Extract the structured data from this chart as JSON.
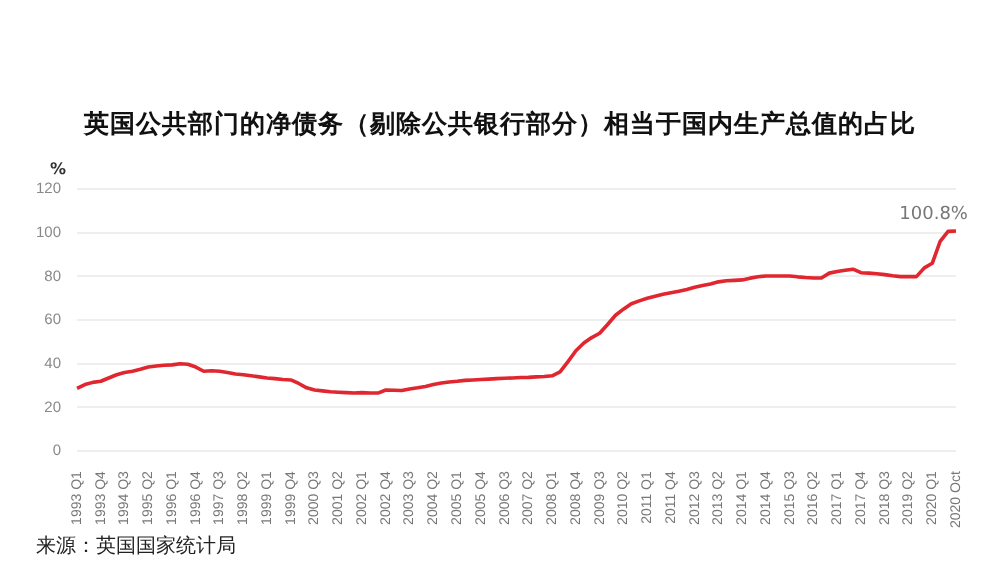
{
  "chart_data": {
    "type": "line",
    "title": "英国公共部门的净债务（剔除公共银行部分）相当于国内生产总值的占比",
    "ylabel": "%",
    "categories": [
      "1993 Q1",
      null,
      null,
      "1993 Q4",
      null,
      null,
      "1994 Q3",
      null,
      null,
      "1995 Q2",
      null,
      null,
      "1996 Q1",
      null,
      null,
      "1996 Q4",
      null,
      null,
      "1997 Q3",
      null,
      null,
      "1998 Q2",
      null,
      null,
      "1999 Q1",
      null,
      null,
      "1999 Q4",
      null,
      null,
      "2000 Q3",
      null,
      null,
      "2001 Q2",
      null,
      null,
      "2002 Q1",
      null,
      null,
      "2002 Q4",
      null,
      null,
      "2003 Q3",
      null,
      null,
      "2004 Q2",
      null,
      null,
      "2005 Q1",
      null,
      null,
      "2005 Q4",
      null,
      null,
      "2006 Q3",
      null,
      null,
      "2007 Q2",
      null,
      null,
      "2008 Q1",
      null,
      null,
      "2008 Q4",
      null,
      null,
      "2009 Q3",
      null,
      null,
      "2010 Q2",
      null,
      null,
      "2011 Q1",
      null,
      null,
      "2011 Q4",
      null,
      null,
      "2012 Q3",
      null,
      null,
      "2013 Q2",
      null,
      null,
      "2014 Q1",
      null,
      null,
      "2014 Q4",
      null,
      null,
      "2015 Q3",
      null,
      null,
      "2016 Q2",
      null,
      null,
      "2017 Q1",
      null,
      null,
      "2017 Q4",
      null,
      null,
      "2018 Q3",
      null,
      null,
      "2019 Q2",
      null,
      null,
      "2020 Q1",
      null,
      null,
      "2020 Oct"
    ],
    "values": [
      28.7,
      30.5,
      31.5,
      32,
      33.5,
      35,
      36,
      36.6,
      37.5,
      38.5,
      39,
      39.3,
      39.5,
      40,
      39.8,
      38.5,
      36.6,
      36.8,
      36.6,
      36,
      35.3,
      35,
      34.5,
      34,
      33.5,
      33.2,
      32.8,
      32.6,
      31,
      29,
      28,
      27.6,
      27.2,
      27,
      26.8,
      26.6,
      26.8,
      26.6,
      26.6,
      28,
      27.9,
      27.8,
      28.5,
      29,
      29.6,
      30.5,
      31.2,
      31.7,
      32,
      32.4,
      32.6,
      32.8,
      33,
      33.2,
      33.4,
      33.5,
      33.7,
      33.8,
      34,
      34.2,
      34.5,
      36.3,
      41,
      46,
      49.5,
      52,
      54,
      58,
      62.2,
      65,
      67.5,
      68.8,
      70,
      70.9,
      71.8,
      72.5,
      73.2,
      74,
      75,
      75.8,
      76.5,
      77.5,
      78,
      78.2,
      78.4,
      79.2,
      79.8,
      80.2,
      80.2,
      80.2,
      80.2,
      79.8,
      79.5,
      79.3,
      79.3,
      81.5,
      82.2,
      82.8,
      83.3,
      81.7,
      81.5,
      81.2,
      80.8,
      80.3,
      79.9,
      79.9,
      79.9,
      83.9,
      86,
      96,
      100.6,
      100.8
    ],
    "color": "#e0262e",
    "ylim": [
      0,
      120
    ],
    "yticks": [
      0,
      20,
      40,
      60,
      80,
      100,
      120
    ],
    "grid": "y",
    "annotations": [
      {
        "text": "100.8%",
        "x": "2020 Oct",
        "y": 100.8
      },
      "来源：英国国家统计局"
    ]
  }
}
